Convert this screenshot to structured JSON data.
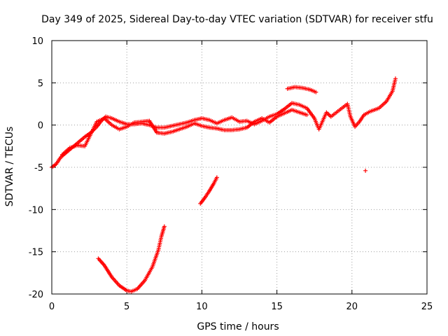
{
  "chart_data": {
    "type": "scatter",
    "title": "Day 349 of 2025, Sidereal Day-to-day VTEC variation (SDTVAR) for receiver stfu",
    "xlabel": "GPS time / hours",
    "ylabel": "SDTVAR / TECUs",
    "xlim": [
      0,
      25
    ],
    "ylim": [
      -20,
      10
    ],
    "xticks": [
      0,
      5,
      10,
      15,
      20,
      25
    ],
    "yticks": [
      -20,
      -15,
      -10,
      -5,
      0,
      5,
      10
    ],
    "grid": true,
    "marker": "+",
    "color": "#ff0000",
    "series": [
      {
        "name": "SDTVAR",
        "points": [
          [
            0.0,
            -5.0
          ],
          [
            0.3,
            -4.6
          ],
          [
            0.6,
            -3.8
          ],
          [
            1.0,
            -3.2
          ],
          [
            1.4,
            -2.6
          ],
          [
            1.8,
            -2.0
          ],
          [
            2.2,
            -1.4
          ],
          [
            2.6,
            -0.9
          ],
          [
            3.0,
            -0.2
          ],
          [
            3.3,
            0.5
          ],
          [
            3.6,
            1.0
          ],
          [
            4.0,
            0.8
          ],
          [
            4.5,
            0.4
          ],
          [
            5.0,
            0.1
          ],
          [
            5.5,
            0.1
          ],
          [
            6.0,
            0.2
          ],
          [
            6.5,
            0.0
          ],
          [
            7.0,
            -0.3
          ],
          [
            7.5,
            -0.3
          ],
          [
            8.0,
            -0.1
          ],
          [
            8.5,
            0.1
          ],
          [
            9.0,
            0.3
          ],
          [
            9.5,
            0.6
          ],
          [
            10.0,
            0.8
          ],
          [
            10.5,
            0.6
          ],
          [
            11.0,
            0.2
          ],
          [
            11.5,
            0.6
          ],
          [
            12.0,
            0.9
          ],
          [
            12.5,
            0.4
          ],
          [
            13.0,
            0.5
          ],
          [
            13.5,
            0.1
          ],
          [
            14.0,
            0.5
          ],
          [
            14.5,
            1.0
          ],
          [
            15.0,
            1.3
          ],
          [
            15.5,
            1.9
          ],
          [
            16.0,
            2.6
          ],
          [
            16.5,
            2.4
          ],
          [
            17.0,
            2.0
          ],
          [
            17.5,
            0.8
          ],
          [
            17.8,
            -0.5
          ],
          [
            18.3,
            1.5
          ],
          [
            18.6,
            1.0
          ],
          [
            19.7,
            2.5
          ],
          [
            19.9,
            1.0
          ],
          [
            20.2,
            -0.2
          ],
          [
            20.5,
            0.4
          ],
          [
            20.8,
            1.2
          ],
          [
            21.2,
            1.6
          ],
          [
            21.8,
            2.0
          ],
          [
            22.3,
            2.8
          ],
          [
            22.7,
            4.0
          ],
          [
            22.9,
            5.5
          ]
        ]
      },
      {
        "name": "SDTVAR",
        "points": [
          [
            0.7,
            -3.5
          ],
          [
            1.2,
            -2.7
          ],
          [
            1.7,
            -2.4
          ],
          [
            2.2,
            -2.5
          ],
          [
            3.0,
            0.4
          ],
          [
            3.5,
            0.8
          ],
          [
            4.0,
            0.0
          ],
          [
            4.5,
            -0.5
          ],
          [
            5.0,
            -0.2
          ],
          [
            5.5,
            0.3
          ],
          [
            6.0,
            0.4
          ],
          [
            6.5,
            0.5
          ],
          [
            7.0,
            -0.9
          ],
          [
            7.5,
            -1.0
          ],
          [
            8.0,
            -0.8
          ],
          [
            8.5,
            -0.5
          ],
          [
            9.0,
            -0.2
          ],
          [
            9.5,
            0.2
          ],
          [
            10.0,
            -0.1
          ],
          [
            10.5,
            -0.3
          ],
          [
            11.0,
            -0.4
          ],
          [
            11.5,
            -0.6
          ],
          [
            12.0,
            -0.6
          ],
          [
            12.5,
            -0.5
          ],
          [
            13.0,
            -0.3
          ],
          [
            13.5,
            0.4
          ],
          [
            14.0,
            0.8
          ],
          [
            14.5,
            0.3
          ],
          [
            15.0,
            1.0
          ],
          [
            15.5,
            1.4
          ],
          [
            16.0,
            1.8
          ],
          [
            16.5,
            1.5
          ],
          [
            17.0,
            1.2
          ]
        ]
      },
      {
        "name": "SDTVAR",
        "points": [
          [
            15.7,
            4.3
          ],
          [
            16.2,
            4.5
          ],
          [
            16.7,
            4.4
          ],
          [
            17.2,
            4.2
          ],
          [
            17.6,
            3.9
          ]
        ]
      },
      {
        "name": "SDTVAR",
        "points": [
          [
            3.1,
            -15.8
          ],
          [
            3.5,
            -16.6
          ],
          [
            4.0,
            -18.0
          ],
          [
            4.5,
            -19.0
          ],
          [
            5.0,
            -19.6
          ],
          [
            5.3,
            -19.7
          ],
          [
            5.7,
            -19.4
          ],
          [
            6.2,
            -18.4
          ],
          [
            6.7,
            -16.8
          ],
          [
            7.1,
            -14.8
          ],
          [
            7.3,
            -13.2
          ],
          [
            7.5,
            -12.0
          ]
        ]
      },
      {
        "name": "SDTVAR",
        "points": [
          [
            9.9,
            -9.3
          ],
          [
            10.2,
            -8.6
          ],
          [
            10.5,
            -7.8
          ],
          [
            10.8,
            -6.9
          ],
          [
            11.0,
            -6.2
          ]
        ]
      },
      {
        "name": "SDTVAR",
        "points": [
          [
            20.9,
            -5.4
          ]
        ]
      }
    ]
  }
}
